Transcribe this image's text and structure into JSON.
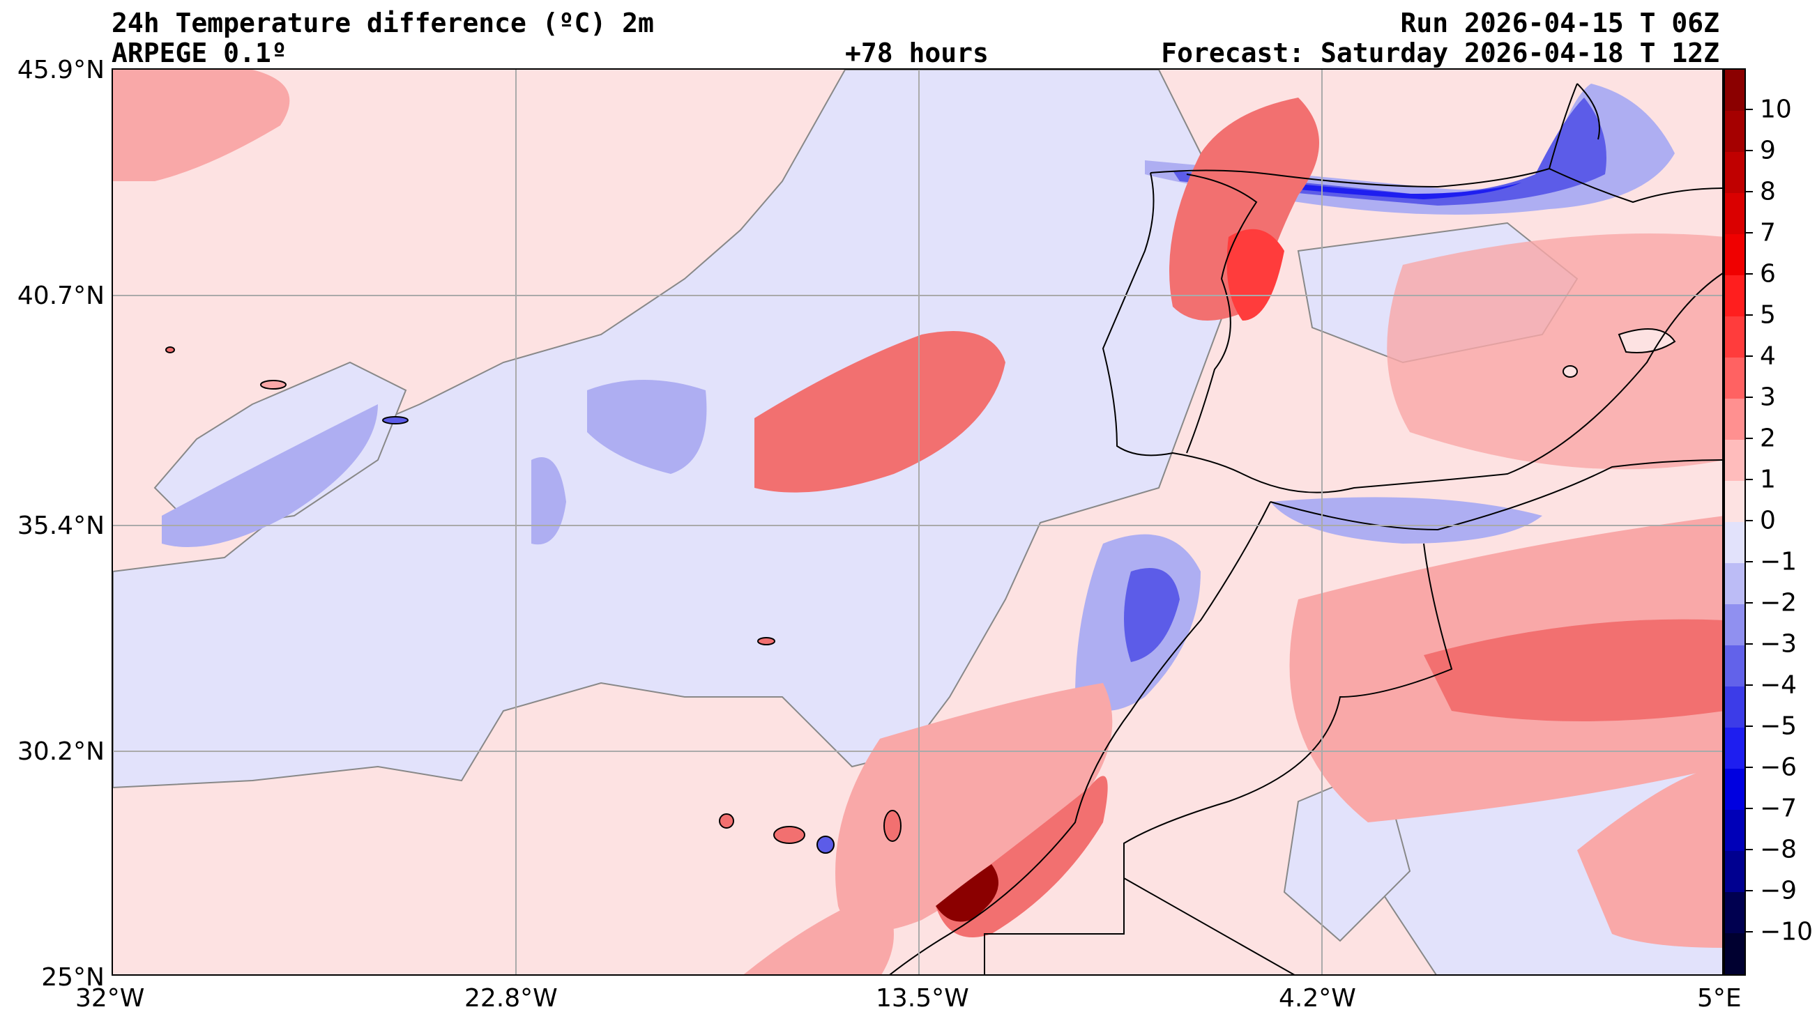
{
  "header": {
    "title": "24h Temperature difference (ºC) 2m",
    "model": "ARPEGE 0.1º",
    "lead_time": "+78 hours",
    "run": "Run 2026-04-15 T 06Z",
    "forecast": "Forecast: Saturday 2026-04-18 T 12Z"
  },
  "map": {
    "lon_range": [
      -32,
      5
    ],
    "lat_range": [
      25,
      45.9
    ],
    "lon_ticks": [
      "32°W",
      "22.8°W",
      "13.5°W",
      "4.2°W",
      "5°E"
    ],
    "lat_ticks": [
      "45.9°N",
      "40.7°N",
      "35.4°N",
      "30.2°N",
      "25°N"
    ],
    "colors": {
      "neg_light": "#e2e2fb",
      "pos_light": "#fde2e2",
      "pos_mid": "#f9a8a8",
      "pos_strong": "#f27070",
      "neg_mid": "#aeaef2",
      "neg_strong": "#5c5ce8",
      "coast": "#000000"
    }
  },
  "colorbar": {
    "labels": [
      "10",
      "9",
      "8",
      "7",
      "6",
      "5",
      "4",
      "3",
      "2",
      "1",
      "0",
      "−1",
      "−2",
      "−3",
      "−4",
      "−5",
      "−6",
      "−7",
      "−8",
      "−9",
      "−10"
    ],
    "colors": [
      "#8b0000",
      "#a50000",
      "#c00000",
      "#da0000",
      "#f00000",
      "#ff1e1e",
      "#ff3c3c",
      "#ff6262",
      "#ff9090",
      "#ffbcbc",
      "#fde2e2",
      "#e2e2fb",
      "#bcbcf6",
      "#9090f0",
      "#6262ea",
      "#3c3ce8",
      "#1e1ef0",
      "#0000e0",
      "#0000b8",
      "#000090",
      "#000050",
      "#000030"
    ]
  }
}
